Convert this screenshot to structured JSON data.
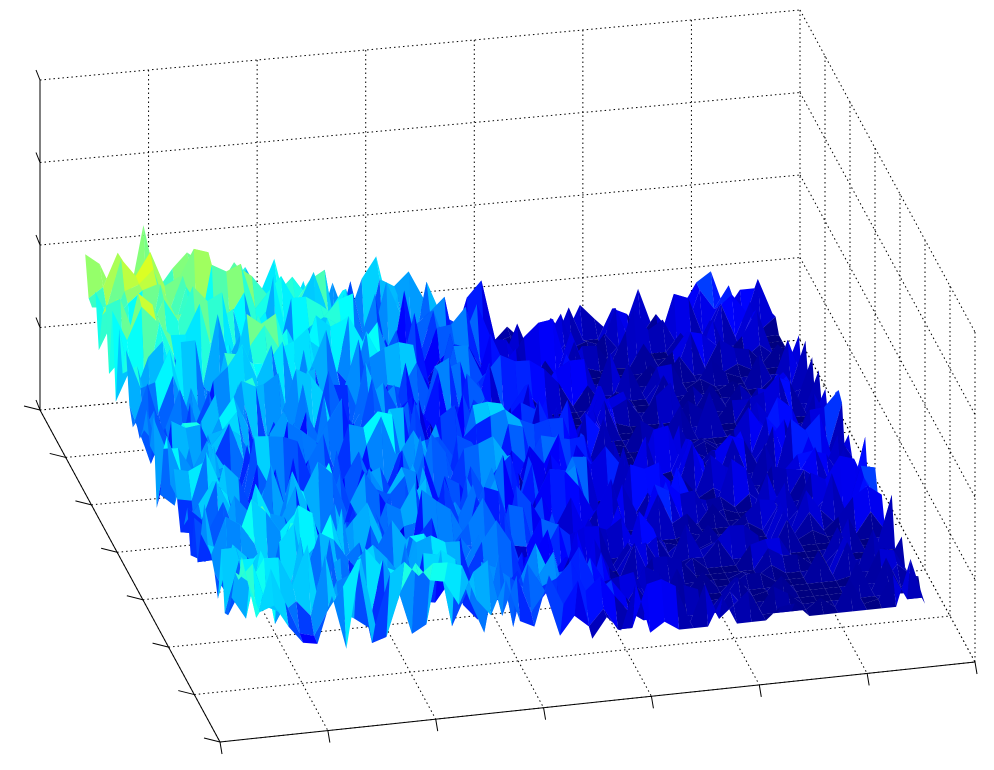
{
  "chart_data": {
    "type": "surface",
    "title": "",
    "xlabel": "",
    "ylabel": "",
    "zlabel": "",
    "colormap": "jet",
    "grid": true,
    "grid_style": "dotted",
    "tick_labels_shown": false,
    "surface_description_values": {
      "grid_size": [
        48,
        48
      ],
      "z_range": [
        0,
        1
      ]
    },
    "colors": {
      "low": "#0000ff",
      "mid_low": "#00ffff",
      "mid": "#ffff00",
      "high": "#ff0000",
      "axis": "#000000",
      "background": "#ffffff"
    }
  }
}
